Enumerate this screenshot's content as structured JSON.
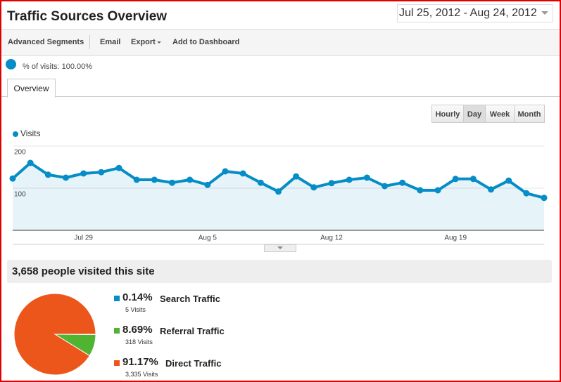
{
  "header": {
    "title": "Traffic Sources Overview",
    "date_range": "Jul 25, 2012 - Aug 24, 2012"
  },
  "toolbar": [
    "Advanced Segments",
    "Email",
    "Export",
    "Add to Dashboard"
  ],
  "segment": "% of visits: 100.00%",
  "tabs": [
    "Overview"
  ],
  "granularity": [
    "Hourly",
    "Day",
    "Week",
    "Month"
  ],
  "summary": "3,658 people visited this site",
  "chart_data": [
    {
      "type": "line",
      "categories": [
        null,
        null,
        null,
        null,
        "Jul 29",
        null,
        null,
        null,
        null,
        null,
        null,
        "Aug 5",
        null,
        null,
        null,
        null,
        null,
        null,
        "Aug 12",
        null,
        null,
        null,
        null,
        null,
        null,
        "Aug 19",
        null,
        null,
        null,
        null,
        null
      ],
      "series": [
        {
          "name": "Visits",
          "color": "#058dc7",
          "values": [
            123,
            160,
            132,
            125,
            135,
            138,
            148,
            120,
            120,
            113,
            120,
            108,
            140,
            135,
            113,
            92,
            128,
            102,
            112,
            120,
            125,
            105,
            113,
            95,
            95,
            122,
            122,
            97,
            118,
            88,
            77
          ]
        }
      ],
      "ylim": [
        0,
        200
      ],
      "yticks": [
        100,
        200
      ],
      "grid": true
    },
    {
      "type": "pie",
      "categories": [
        "Search Traffic",
        "Referral Traffic",
        "Direct Traffic"
      ],
      "values": [
        0.14,
        8.69,
        91.17
      ],
      "value_labels": [
        "0.14%",
        "8.69%",
        "91.17%"
      ],
      "colors": [
        "#058dc7",
        "#50b432",
        "#ed561b"
      ],
      "visits_labels": [
        "5 Visits",
        "318 Visits",
        "3,335 Visits"
      ]
    }
  ]
}
